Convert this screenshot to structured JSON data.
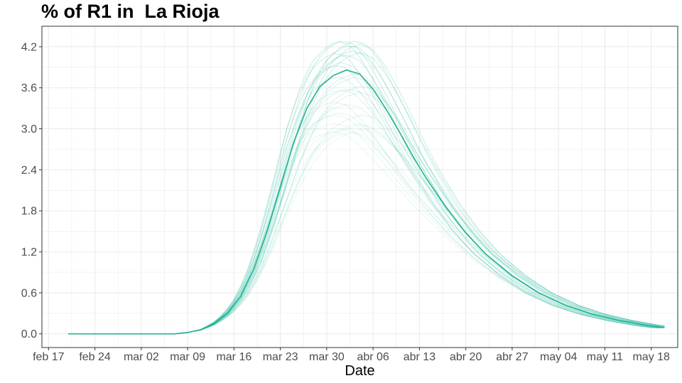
{
  "chart_data": {
    "type": "line",
    "title": "% of R1 in  La Rioja",
    "xlabel": "Date",
    "ylabel": "",
    "x_ticks": [
      "feb 17",
      "feb 24",
      "mar 02",
      "mar 09",
      "mar 16",
      "mar 23",
      "mar 30",
      "abr 06",
      "abr 13",
      "abr 20",
      "abr 27",
      "may 04",
      "may 11",
      "may 18"
    ],
    "y_ticks": [
      0.0,
      0.6,
      1.2,
      1.8,
      2.4,
      3.0,
      3.6,
      4.2
    ],
    "ylim": [
      -0.2,
      4.5
    ],
    "xlim": [
      "2020-02-16",
      "2020-05-22"
    ],
    "grid": true,
    "legend": "none",
    "colors": {
      "main": "#1ab394",
      "ensemble": "#1ab394",
      "panel_border": "#333333",
      "grid": "#ebebeb"
    },
    "highlight_series": {
      "x": [
        "2020-02-20",
        "2020-03-01",
        "2020-03-07",
        "2020-03-09",
        "2020-03-11",
        "2020-03-13",
        "2020-03-15",
        "2020-03-17",
        "2020-03-19",
        "2020-03-21",
        "2020-03-23",
        "2020-03-25",
        "2020-03-27",
        "2020-03-29",
        "2020-03-31",
        "2020-04-02",
        "2020-04-04",
        "2020-04-06",
        "2020-04-08",
        "2020-04-10",
        "2020-04-12",
        "2020-04-14",
        "2020-04-17",
        "2020-04-20",
        "2020-04-23",
        "2020-04-27",
        "2020-05-01",
        "2020-05-05",
        "2020-05-09",
        "2020-05-13",
        "2020-05-17",
        "2020-05-20"
      ],
      "y": [
        0.0,
        0.0,
        0.0,
        0.02,
        0.06,
        0.15,
        0.3,
        0.55,
        0.95,
        1.5,
        2.15,
        2.8,
        3.3,
        3.62,
        3.78,
        3.86,
        3.8,
        3.58,
        3.28,
        2.95,
        2.6,
        2.28,
        1.85,
        1.48,
        1.17,
        0.85,
        0.6,
        0.42,
        0.29,
        0.2,
        0.13,
        0.09
      ]
    },
    "ensemble": {
      "count": 30,
      "peak_range": [
        2.95,
        4.3
      ],
      "peak_date_range": [
        "2020-03-31",
        "2020-04-04"
      ]
    }
  }
}
